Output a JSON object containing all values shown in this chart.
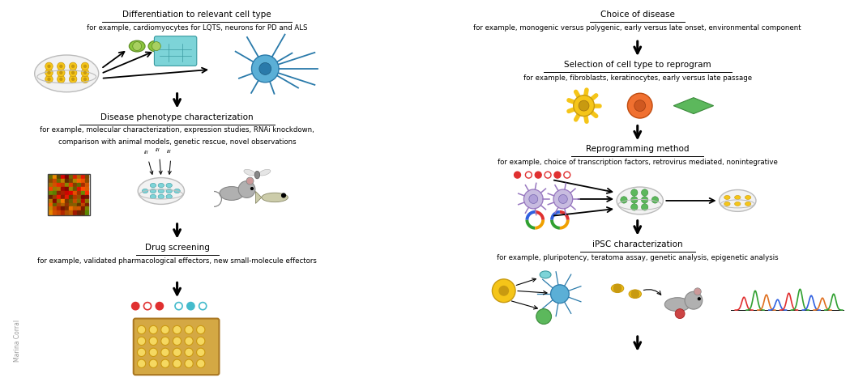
{
  "bg_color": "#ffffff",
  "left_panel": {
    "title1": "Differentiation to relevant cell type",
    "subtitle1": "for example, cardiomyocytes for LQTS, neurons for PD and ALS",
    "title2": "Disease phenotype characterization",
    "subtitle2a": "for example, molecular characterization, expression studies, RNAi knockdown,",
    "subtitle2b": "comparison with animal models, genetic rescue, novel observations",
    "title3": "Drug screening",
    "subtitle3": "for example, validated pharmacological effectors, new small-molecule effectors",
    "watermark": "Marina Corral"
  },
  "right_panel": {
    "title1": "Choice of disease",
    "subtitle1": "for example, monogenic versus polygenic, early versus late onset, environmental component",
    "title2": "Selection of cell type to reprogram",
    "subtitle2": "for example, fibroblasts, keratinocytes, early versus late passage",
    "title3": "Reprogramming method",
    "subtitle3": "for example, choice of transcription factors, retrovirus mediated, nonintegrative",
    "title4": "iPSC characterization",
    "subtitle4": "for example, pluripotency, teratoma assay, genetic analysis, epigenetic analysis"
  }
}
